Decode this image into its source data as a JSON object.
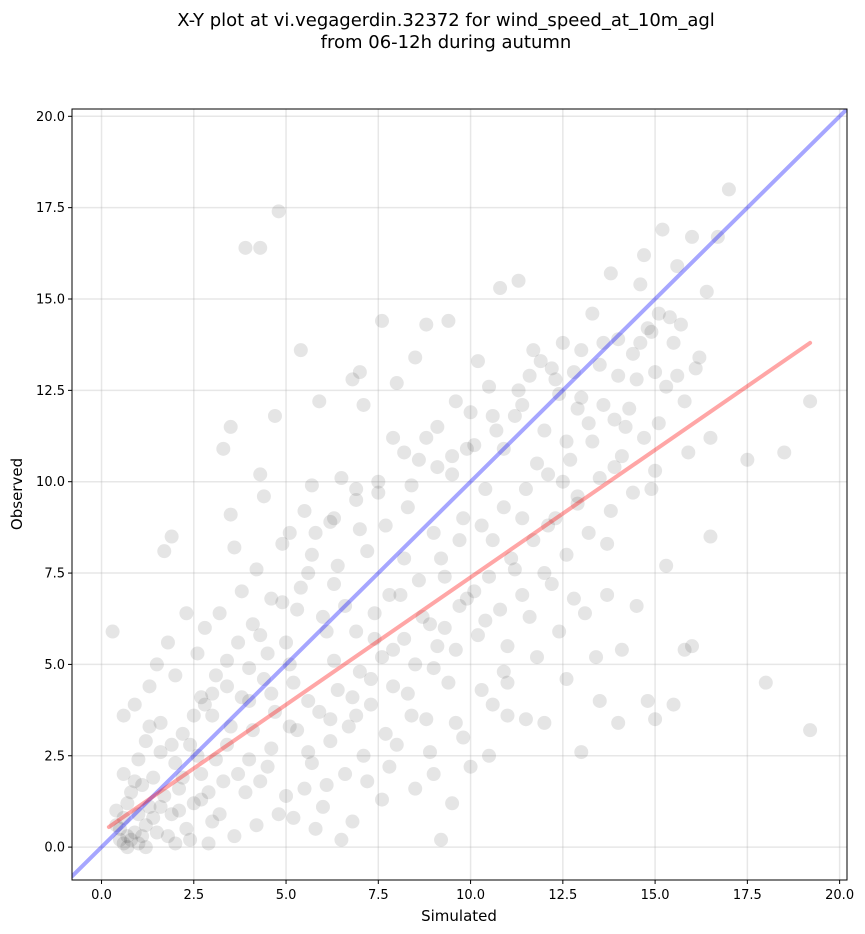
{
  "chart_data": {
    "type": "scatter",
    "title": "X-Y plot at vi.vegagerdin.32372 for wind_speed_at_10m_agl",
    "subtitle": "from 06-12h during autumn",
    "xlabel": "Simulated",
    "ylabel": "Observed",
    "xlim": [
      -0.8,
      20.2
    ],
    "ylim": [
      -0.9,
      20.2
    ],
    "xticks": [
      0.0,
      2.5,
      5.0,
      7.5,
      10.0,
      12.5,
      15.0,
      17.5,
      20.0
    ],
    "xtick_labels": [
      "0.0",
      "2.5",
      "5.0",
      "7.5",
      "10.0",
      "12.5",
      "15.0",
      "17.5",
      "20.0"
    ],
    "yticks": [
      0.0,
      2.5,
      5.0,
      7.5,
      10.0,
      12.5,
      15.0,
      17.5,
      20.0
    ],
    "ytick_labels": [
      "0.0",
      "2.5",
      "5.0",
      "7.5",
      "10.0",
      "12.5",
      "15.0",
      "17.5",
      "20.0"
    ],
    "grid": true,
    "point_color": "#000000",
    "point_alpha": 0.1,
    "lines": [
      {
        "kind": "identity",
        "color": "#0000ff",
        "alpha": 0.35,
        "x": [
          -0.8,
          20.2
        ],
        "y": [
          -0.8,
          20.2
        ]
      },
      {
        "kind": "regression",
        "color": "#ff0000",
        "alpha": 0.35,
        "x": [
          0.2,
          19.2
        ],
        "y": [
          0.55,
          13.8
        ]
      }
    ],
    "points": [
      [
        0.5,
        0.2
      ],
      [
        0.6,
        0.1
      ],
      [
        0.7,
        0.3
      ],
      [
        0.8,
        0.2
      ],
      [
        0.5,
        0.5
      ],
      [
        0.9,
        0.4
      ],
      [
        1.0,
        0.1
      ],
      [
        0.6,
        0.8
      ],
      [
        1.2,
        0.6
      ],
      [
        0.4,
        1.0
      ],
      [
        0.7,
        1.2
      ],
      [
        1.0,
        0.9
      ],
      [
        1.3,
        1.1
      ],
      [
        1.5,
        0.4
      ],
      [
        0.8,
        1.5
      ],
      [
        1.1,
        1.7
      ],
      [
        1.4,
        1.9
      ],
      [
        1.7,
        1.4
      ],
      [
        0.6,
        2.0
      ],
      [
        1.9,
        0.9
      ],
      [
        2.1,
        1.6
      ],
      [
        2.3,
        0.5
      ],
      [
        2.0,
        2.3
      ],
      [
        1.6,
        2.6
      ],
      [
        2.5,
        1.2
      ],
      [
        2.7,
        2.0
      ],
      [
        2.4,
        2.8
      ],
      [
        1.2,
        2.9
      ],
      [
        2.9,
        1.5
      ],
      [
        3.1,
        2.4
      ],
      [
        0.3,
        5.9
      ],
      [
        0.6,
        3.6
      ],
      [
        0.9,
        3.9
      ],
      [
        1.3,
        4.4
      ],
      [
        1.5,
        5.0
      ],
      [
        1.8,
        5.6
      ],
      [
        2.0,
        4.7
      ],
      [
        2.3,
        6.4
      ],
      [
        2.6,
        5.3
      ],
      [
        1.7,
        8.1
      ],
      [
        1.9,
        8.5
      ],
      [
        2.8,
        6.0
      ],
      [
        3.0,
        4.2
      ],
      [
        3.2,
        6.4
      ],
      [
        3.4,
        5.1
      ],
      [
        3.3,
        10.9
      ],
      [
        3.5,
        11.5
      ],
      [
        3.6,
        8.2
      ],
      [
        3.8,
        7.0
      ],
      [
        3.5,
        9.1
      ],
      [
        4.0,
        4.0
      ],
      [
        4.1,
        6.1
      ],
      [
        4.2,
        7.6
      ],
      [
        4.3,
        10.2
      ],
      [
        4.4,
        9.6
      ],
      [
        4.5,
        5.3
      ],
      [
        4.6,
        6.8
      ],
      [
        3.9,
        16.4
      ],
      [
        4.3,
        16.4
      ],
      [
        4.7,
        11.8
      ],
      [
        4.8,
        17.4
      ],
      [
        4.9,
        8.3
      ],
      [
        5.0,
        5.6
      ],
      [
        5.2,
        4.5
      ],
      [
        5.3,
        6.5
      ],
      [
        5.5,
        9.2
      ],
      [
        5.6,
        7.5
      ],
      [
        5.8,
        8.6
      ],
      [
        5.4,
        13.6
      ],
      [
        5.9,
        12.2
      ],
      [
        6.0,
        6.3
      ],
      [
        6.1,
        5.9
      ],
      [
        6.2,
        8.9
      ],
      [
        6.3,
        7.2
      ],
      [
        6.5,
        10.1
      ],
      [
        6.6,
        6.6
      ],
      [
        6.8,
        12.8
      ],
      [
        6.9,
        9.5
      ],
      [
        7.0,
        13.0
      ],
      [
        7.1,
        12.1
      ],
      [
        7.2,
        8.1
      ],
      [
        7.4,
        5.7
      ],
      [
        7.5,
        9.7
      ],
      [
        7.6,
        14.4
      ],
      [
        7.8,
        6.9
      ],
      [
        7.9,
        11.2
      ],
      [
        8.0,
        12.7
      ],
      [
        8.2,
        7.9
      ],
      [
        8.3,
        9.3
      ],
      [
        8.5,
        13.4
      ],
      [
        8.6,
        10.6
      ],
      [
        8.8,
        14.3
      ],
      [
        8.9,
        6.1
      ],
      [
        9.0,
        8.6
      ],
      [
        9.1,
        11.5
      ],
      [
        9.3,
        7.4
      ],
      [
        9.4,
        14.4
      ],
      [
        9.5,
        10.2
      ],
      [
        9.6,
        12.2
      ],
      [
        9.8,
        9.0
      ],
      [
        10.0,
        11.9
      ],
      [
        10.1,
        7.0
      ],
      [
        10.2,
        13.3
      ],
      [
        10.4,
        9.8
      ],
      [
        10.5,
        12.6
      ],
      [
        10.6,
        8.4
      ],
      [
        10.8,
        15.3
      ],
      [
        10.9,
        10.9
      ],
      [
        11.0,
        5.5
      ],
      [
        11.2,
        11.8
      ],
      [
        11.3,
        15.5
      ],
      [
        11.4,
        9.0
      ],
      [
        11.6,
        12.9
      ],
      [
        11.7,
        13.6
      ],
      [
        11.8,
        10.5
      ],
      [
        12.0,
        11.4
      ],
      [
        12.1,
        8.8
      ],
      [
        12.2,
        13.1
      ],
      [
        12.4,
        12.4
      ],
      [
        12.5,
        10.0
      ],
      [
        12.6,
        11.1
      ],
      [
        12.8,
        13.0
      ],
      [
        12.9,
        9.4
      ],
      [
        13.0,
        12.3
      ],
      [
        13.2,
        11.6
      ],
      [
        13.3,
        14.6
      ],
      [
        13.5,
        13.2
      ],
      [
        13.6,
        12.1
      ],
      [
        13.7,
        8.3
      ],
      [
        13.8,
        15.7
      ],
      [
        13.9,
        10.4
      ],
      [
        14.0,
        13.9
      ],
      [
        14.2,
        11.5
      ],
      [
        14.4,
        13.5
      ],
      [
        14.5,
        12.8
      ],
      [
        14.6,
        15.4
      ],
      [
        14.7,
        16.2
      ],
      [
        14.8,
        14.2
      ],
      [
        14.9,
        9.8
      ],
      [
        15.0,
        13.0
      ],
      [
        15.1,
        11.6
      ],
      [
        15.2,
        16.9
      ],
      [
        15.4,
        14.5
      ],
      [
        15.5,
        13.8
      ],
      [
        15.6,
        15.9
      ],
      [
        15.7,
        14.3
      ],
      [
        15.8,
        12.2
      ],
      [
        15.9,
        10.8
      ],
      [
        16.0,
        16.7
      ],
      [
        16.2,
        13.4
      ],
      [
        16.4,
        15.2
      ],
      [
        16.5,
        11.2
      ],
      [
        16.7,
        16.7
      ],
      [
        17.0,
        18.0
      ],
      [
        17.5,
        10.6
      ],
      [
        18.5,
        10.8
      ],
      [
        19.2,
        12.2
      ],
      [
        19.2,
        3.2
      ],
      [
        18.0,
        4.5
      ],
      [
        15.5,
        3.9
      ],
      [
        15.0,
        3.5
      ],
      [
        14.8,
        4.0
      ],
      [
        14.0,
        3.4
      ],
      [
        13.5,
        4.0
      ],
      [
        13.0,
        2.6
      ],
      [
        12.6,
        4.6
      ],
      [
        12.0,
        3.4
      ],
      [
        11.5,
        3.5
      ],
      [
        11.0,
        3.6
      ],
      [
        10.5,
        2.5
      ],
      [
        10.0,
        2.2
      ],
      [
        9.5,
        1.2
      ],
      [
        9.2,
        0.2
      ],
      [
        9.0,
        2.0
      ],
      [
        8.5,
        1.6
      ],
      [
        8.0,
        2.8
      ],
      [
        7.6,
        1.3
      ],
      [
        7.2,
        1.8
      ],
      [
        6.8,
        0.7
      ],
      [
        6.5,
        0.2
      ],
      [
        6.0,
        1.1
      ],
      [
        5.8,
        0.5
      ],
      [
        5.5,
        1.6
      ],
      [
        5.2,
        0.8
      ],
      [
        5.0,
        1.4
      ],
      [
        4.8,
        0.9
      ],
      [
        4.5,
        2.2
      ],
      [
        4.2,
        0.6
      ],
      [
        3.9,
        1.5
      ],
      [
        3.6,
        0.3
      ],
      [
        3.3,
        1.8
      ],
      [
        3.0,
        0.7
      ],
      [
        2.7,
        1.3
      ],
      [
        2.4,
        0.2
      ],
      [
        2.1,
        1.0
      ],
      [
        1.8,
        0.3
      ],
      [
        5.3,
        3.2
      ],
      [
        5.6,
        2.6
      ],
      [
        5.9,
        3.7
      ],
      [
        6.2,
        2.9
      ],
      [
        6.4,
        4.3
      ],
      [
        6.7,
        3.3
      ],
      [
        7.0,
        4.8
      ],
      [
        7.3,
        3.9
      ],
      [
        7.6,
        5.2
      ],
      [
        7.9,
        4.4
      ],
      [
        8.2,
        5.7
      ],
      [
        8.4,
        3.6
      ],
      [
        8.7,
        6.3
      ],
      [
        9.0,
        4.9
      ],
      [
        9.3,
        6.0
      ],
      [
        9.6,
        5.4
      ],
      [
        9.9,
        6.8
      ],
      [
        10.2,
        5.8
      ],
      [
        10.5,
        7.4
      ],
      [
        10.8,
        6.5
      ],
      [
        11.1,
        7.9
      ],
      [
        11.4,
        6.9
      ],
      [
        11.7,
        8.4
      ],
      [
        12.0,
        7.5
      ],
      [
        12.3,
        9.0
      ],
      [
        12.6,
        8.0
      ],
      [
        12.9,
        9.6
      ],
      [
        13.2,
        8.6
      ],
      [
        13.5,
        10.1
      ],
      [
        13.8,
        9.2
      ],
      [
        14.1,
        10.7
      ],
      [
        14.4,
        9.7
      ],
      [
        14.7,
        11.2
      ],
      [
        15.0,
        10.3
      ],
      [
        3.0,
        3.6
      ],
      [
        3.4,
        2.8
      ],
      [
        3.8,
        4.1
      ],
      [
        4.1,
        3.2
      ],
      [
        4.4,
        4.6
      ],
      [
        4.7,
        3.7
      ],
      [
        5.1,
        5.0
      ],
      [
        2.8,
        3.9
      ],
      [
        2.2,
        3.1
      ],
      [
        1.6,
        3.4
      ],
      [
        4.6,
        2.7
      ],
      [
        4.0,
        2.4
      ],
      [
        3.5,
        3.3
      ],
      [
        6.3,
        5.1
      ],
      [
        6.9,
        5.9
      ],
      [
        7.4,
        6.4
      ],
      [
        8.1,
        6.9
      ],
      [
        8.6,
        7.3
      ],
      [
        9.2,
        7.9
      ],
      [
        9.7,
        8.4
      ],
      [
        10.3,
        8.8
      ],
      [
        10.9,
        9.3
      ],
      [
        11.5,
        9.8
      ],
      [
        12.1,
        10.2
      ],
      [
        12.7,
        10.6
      ],
      [
        13.3,
        11.1
      ],
      [
        13.9,
        11.7
      ],
      [
        14.3,
        12.0
      ],
      [
        15.3,
        12.6
      ],
      [
        16.1,
        13.1
      ],
      [
        11.0,
        4.5
      ],
      [
        11.8,
        5.2
      ],
      [
        12.4,
        5.9
      ],
      [
        13.1,
        6.4
      ],
      [
        13.7,
        6.9
      ],
      [
        14.5,
        6.6
      ],
      [
        15.3,
        7.7
      ],
      [
        16.0,
        5.5
      ],
      [
        15.8,
        5.4
      ],
      [
        16.5,
        8.5
      ],
      [
        9.8,
        3.0
      ],
      [
        10.6,
        3.9
      ],
      [
        10.9,
        4.8
      ],
      [
        9.4,
        4.5
      ],
      [
        8.8,
        3.5
      ],
      [
        8.3,
        4.2
      ],
      [
        7.7,
        3.1
      ],
      [
        7.1,
        2.5
      ],
      [
        6.6,
        2.0
      ],
      [
        6.1,
        1.7
      ],
      [
        1.0,
        2.4
      ],
      [
        1.3,
        3.3
      ],
      [
        1.9,
        2.8
      ],
      [
        2.5,
        3.6
      ],
      [
        3.1,
        4.7
      ],
      [
        3.7,
        5.6
      ],
      [
        4.3,
        5.8
      ],
      [
        4.9,
        6.7
      ],
      [
        5.4,
        7.1
      ],
      [
        5.7,
        8.0
      ],
      [
        6.4,
        7.7
      ],
      [
        7.0,
        8.7
      ],
      [
        7.7,
        8.8
      ],
      [
        8.4,
        9.9
      ],
      [
        9.1,
        10.4
      ],
      [
        9.9,
        10.9
      ],
      [
        10.7,
        11.4
      ],
      [
        11.4,
        12.1
      ],
      [
        12.3,
        12.8
      ],
      [
        13.0,
        13.6
      ],
      [
        0.4,
        0.6
      ],
      [
        0.7,
        0.0
      ],
      [
        1.1,
        0.3
      ],
      [
        1.4,
        0.8
      ],
      [
        0.9,
        1.8
      ],
      [
        1.6,
        1.1
      ],
      [
        2.2,
        1.9
      ],
      [
        2.6,
        2.5
      ],
      [
        1.2,
        0.0
      ],
      [
        2.0,
        0.1
      ],
      [
        2.9,
        0.1
      ],
      [
        3.2,
        0.9
      ],
      [
        3.7,
        2.0
      ],
      [
        4.3,
        1.8
      ],
      [
        5.7,
        2.3
      ],
      [
        6.9,
        3.6
      ],
      [
        7.8,
        2.2
      ],
      [
        8.9,
        2.6
      ],
      [
        9.6,
        3.4
      ],
      [
        10.3,
        4.3
      ],
      [
        14.1,
        5.4
      ],
      [
        13.4,
        5.2
      ],
      [
        12.8,
        6.8
      ],
      [
        12.2,
        7.2
      ],
      [
        11.6,
        6.3
      ],
      [
        11.2,
        7.6
      ],
      [
        10.4,
        6.2
      ],
      [
        9.7,
        6.6
      ],
      [
        9.1,
        5.5
      ],
      [
        8.5,
        5.0
      ],
      [
        7.9,
        5.4
      ],
      [
        7.3,
        4.6
      ],
      [
        6.8,
        4.1
      ],
      [
        6.2,
        3.5
      ],
      [
        5.6,
        4.0
      ],
      [
        5.1,
        3.3
      ],
      [
        4.6,
        4.2
      ],
      [
        4.0,
        4.9
      ],
      [
        3.4,
        4.4
      ],
      [
        2.7,
        4.1
      ],
      [
        14.0,
        12.9
      ],
      [
        14.6,
        13.8
      ],
      [
        15.1,
        14.6
      ],
      [
        15.6,
        12.9
      ],
      [
        14.9,
        14.1
      ],
      [
        13.6,
        13.8
      ],
      [
        12.9,
        12.0
      ],
      [
        12.5,
        13.8
      ],
      [
        11.9,
        13.3
      ],
      [
        11.3,
        12.5
      ],
      [
        10.6,
        11.8
      ],
      [
        10.1,
        11.0
      ],
      [
        9.5,
        10.7
      ],
      [
        8.8,
        11.2
      ],
      [
        8.2,
        10.8
      ],
      [
        7.5,
        10.0
      ],
      [
        6.9,
        9.8
      ],
      [
        6.3,
        9.0
      ],
      [
        5.7,
        9.9
      ],
      [
        5.1,
        8.6
      ]
    ]
  }
}
